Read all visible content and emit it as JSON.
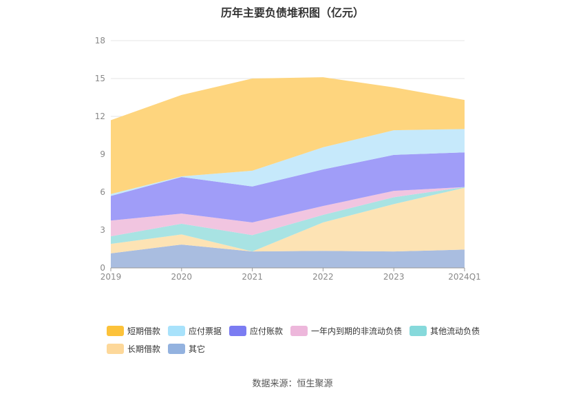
{
  "chart_data": {
    "type": "area",
    "stacked": true,
    "title": "历年主要负债堆积图（亿元）",
    "categories": [
      "2019",
      "2020",
      "2021",
      "2022",
      "2023",
      "2024Q1"
    ],
    "ylim": [
      0,
      18
    ],
    "yticks": [
      "0",
      "3",
      "6",
      "9",
      "12",
      "15",
      "18"
    ],
    "grid": true,
    "legend_position": "bottom",
    "series": [
      {
        "name": "其它",
        "color": "#a9bde0",
        "values": [
          1.15,
          1.85,
          1.3,
          1.35,
          1.3,
          1.45
        ]
      },
      {
        "name": "长期借款",
        "color": "#fde3b4",
        "values": [
          0.75,
          0.8,
          0.0,
          2.25,
          3.75,
          4.9
        ]
      },
      {
        "name": "其他流动负债",
        "color": "#a8e3e3",
        "values": [
          0.6,
          0.85,
          1.3,
          0.6,
          0.55,
          0.05
        ]
      },
      {
        "name": "一年内到期的非流动负债",
        "color": "#f1c5e0",
        "values": [
          1.25,
          0.8,
          1.0,
          0.7,
          0.5,
          0.0
        ]
      },
      {
        "name": "应付账款",
        "color": "#a09df8",
        "values": [
          1.95,
          2.9,
          2.85,
          2.9,
          2.85,
          2.75
        ]
      },
      {
        "name": "应付票据",
        "color": "#c6e9fb",
        "values": [
          0.15,
          0.05,
          1.25,
          1.75,
          1.95,
          1.85
        ]
      },
      {
        "name": "短期借款",
        "color": "#fed57e",
        "values": [
          5.85,
          6.45,
          7.3,
          5.55,
          3.4,
          2.3
        ]
      }
    ],
    "legend": [
      {
        "name": "短期借款",
        "color": "#fcc23a"
      },
      {
        "name": "应付票据",
        "color": "#a8e2fb"
      },
      {
        "name": "应付账款",
        "color": "#7b7cf2"
      },
      {
        "name": "一年内到期的非流动负债",
        "color": "#edb7db"
      },
      {
        "name": "其他流动负债",
        "color": "#86d9db"
      },
      {
        "name": "长期借款",
        "color": "#fdd89a"
      },
      {
        "name": "其它",
        "color": "#93b2df"
      }
    ],
    "source": "数据来源：恒生聚源"
  }
}
